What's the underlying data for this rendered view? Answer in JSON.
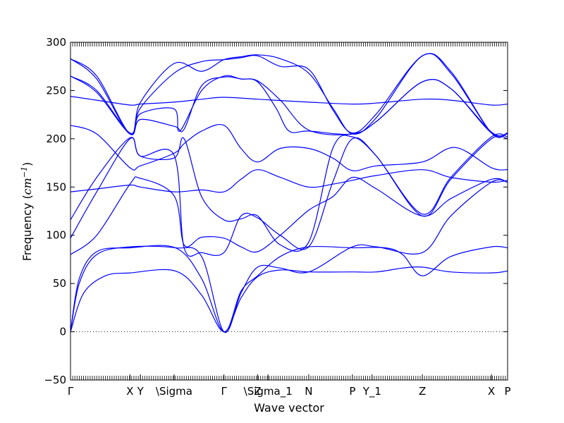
{
  "chart_data": {
    "type": "line",
    "xlabel": "Wave vector",
    "ylabel_text": "Frequency (",
    "ylabel_math": "cm",
    "ylabel_exp": "−1",
    "ylabel_close": ")",
    "ylim": [
      -50,
      300
    ],
    "yticks": [
      -50,
      0,
      50,
      100,
      150,
      200,
      250,
      300
    ],
    "grid": false,
    "line_color": "#0000ff",
    "zero_line_color": "#000000",
    "x_range": [
      0,
      1
    ],
    "x_tick_labels": [
      {
        "label": "Γ",
        "x": 0.0
      },
      {
        "label": "X",
        "x": 0.136
      },
      {
        "label": "Y",
        "x": 0.16
      },
      {
        "label": "\\Sigma",
        "x": 0.237
      },
      {
        "label": "Γ",
        "x": 0.351
      },
      {
        "label": "Z",
        "x": 0.428
      },
      {
        "label": "\\Sigma_1",
        "x": 0.452
      },
      {
        "label": "N",
        "x": 0.545
      },
      {
        "label": "P",
        "x": 0.645
      },
      {
        "label": "Y_1",
        "x": 0.69
      },
      {
        "label": "Z",
        "x": 0.805
      },
      {
        "label": "X",
        "x": 0.963
      },
      {
        "label": "P",
        "x": 1.0
      }
    ],
    "series": [
      {
        "values": [
          [
            0,
            0
          ],
          [
            0.03,
            40
          ],
          [
            0.08,
            58
          ],
          [
            0.136,
            61
          ],
          [
            0.24,
            63
          ],
          [
            0.3,
            38
          ],
          [
            0.351,
            0
          ],
          [
            0.39,
            35
          ],
          [
            0.428,
            57
          ],
          [
            0.48,
            64
          ],
          [
            0.545,
            62
          ],
          [
            0.645,
            62
          ],
          [
            0.7,
            62
          ],
          [
            0.76,
            66
          ],
          [
            0.805,
            67
          ],
          [
            0.87,
            62
          ],
          [
            0.963,
            61
          ],
          [
            1.0,
            63
          ]
        ]
      },
      {
        "values": [
          [
            0,
            0
          ],
          [
            0.02,
            55
          ],
          [
            0.06,
            83
          ],
          [
            0.136,
            87
          ],
          [
            0.24,
            87
          ],
          [
            0.3,
            55
          ],
          [
            0.351,
            0
          ],
          [
            0.39,
            42
          ],
          [
            0.428,
            58
          ],
          [
            0.48,
            78
          ],
          [
            0.545,
            88
          ],
          [
            0.645,
            87
          ],
          [
            0.72,
            87
          ],
          [
            0.76,
            80
          ],
          [
            0.805,
            58
          ],
          [
            0.87,
            78
          ],
          [
            0.963,
            88
          ],
          [
            1.0,
            87
          ]
        ]
      },
      {
        "values": [
          [
            0,
            0
          ],
          [
            0.02,
            50
          ],
          [
            0.06,
            80
          ],
          [
            0.136,
            88
          ],
          [
            0.24,
            87
          ],
          [
            0.3,
            78
          ],
          [
            0.351,
            0
          ],
          [
            0.39,
            40
          ],
          [
            0.428,
            67
          ],
          [
            0.48,
            66
          ],
          [
            0.545,
            62
          ],
          [
            0.645,
            88
          ],
          [
            0.7,
            88
          ],
          [
            0.805,
            82
          ],
          [
            0.87,
            120
          ],
          [
            0.963,
            155
          ],
          [
            1.0,
            155
          ]
        ]
      },
      {
        "values": [
          [
            0,
            80
          ],
          [
            0.06,
            100
          ],
          [
            0.136,
            153
          ],
          [
            0.16,
            159
          ],
          [
            0.237,
            141
          ],
          [
            0.26,
            90
          ],
          [
            0.3,
            98
          ],
          [
            0.351,
            97
          ],
          [
            0.39,
            88
          ],
          [
            0.428,
            83
          ],
          [
            0.48,
            100
          ],
          [
            0.545,
            126
          ],
          [
            0.6,
            140
          ],
          [
            0.645,
            160
          ],
          [
            0.7,
            148
          ],
          [
            0.805,
            120
          ],
          [
            0.87,
            138
          ],
          [
            0.963,
            158
          ],
          [
            1.0,
            155
          ]
        ]
      },
      {
        "values": [
          [
            0,
            97
          ],
          [
            0.06,
            145
          ],
          [
            0.136,
            200
          ],
          [
            0.16,
            182
          ],
          [
            0.237,
            183
          ],
          [
            0.26,
            87
          ],
          [
            0.3,
            82
          ],
          [
            0.351,
            82
          ],
          [
            0.39,
            120
          ],
          [
            0.428,
            118
          ],
          [
            0.48,
            100
          ],
          [
            0.545,
            88
          ],
          [
            0.6,
            155
          ],
          [
            0.645,
            200
          ],
          [
            0.7,
            182
          ],
          [
            0.805,
            120
          ],
          [
            0.87,
            158
          ],
          [
            0.963,
            200
          ],
          [
            1.0,
            200
          ]
        ]
      },
      {
        "values": [
          [
            0,
            116
          ],
          [
            0.06,
            160
          ],
          [
            0.136,
            201
          ],
          [
            0.16,
            182
          ],
          [
            0.237,
            180
          ],
          [
            0.26,
            200
          ],
          [
            0.3,
            140
          ],
          [
            0.351,
            116
          ],
          [
            0.39,
            117
          ],
          [
            0.428,
            120
          ],
          [
            0.48,
            90
          ],
          [
            0.545,
            93
          ],
          [
            0.6,
            190
          ],
          [
            0.645,
            202
          ],
          [
            0.7,
            182
          ],
          [
            0.805,
            122
          ],
          [
            0.87,
            160
          ],
          [
            0.963,
            202
          ],
          [
            1.0,
            202
          ]
        ]
      },
      {
        "values": [
          [
            0,
            145
          ],
          [
            0.06,
            148
          ],
          [
            0.136,
            152
          ],
          [
            0.16,
            150
          ],
          [
            0.237,
            145
          ],
          [
            0.3,
            147
          ],
          [
            0.351,
            145
          ],
          [
            0.39,
            158
          ],
          [
            0.428,
            168
          ],
          [
            0.48,
            160
          ],
          [
            0.545,
            150
          ],
          [
            0.6,
            153
          ],
          [
            0.645,
            157
          ],
          [
            0.7,
            162
          ],
          [
            0.805,
            168
          ],
          [
            0.87,
            160
          ],
          [
            0.963,
            155
          ],
          [
            1.0,
            157
          ]
        ]
      },
      {
        "values": [
          [
            0,
            214
          ],
          [
            0.06,
            205
          ],
          [
            0.136,
            170
          ],
          [
            0.16,
            172
          ],
          [
            0.237,
            185
          ],
          [
            0.26,
            195
          ],
          [
            0.3,
            208
          ],
          [
            0.351,
            214
          ],
          [
            0.39,
            190
          ],
          [
            0.428,
            176
          ],
          [
            0.48,
            190
          ],
          [
            0.545,
            190
          ],
          [
            0.6,
            180
          ],
          [
            0.645,
            167
          ],
          [
            0.7,
            172
          ],
          [
            0.805,
            176
          ],
          [
            0.88,
            191
          ],
          [
            0.963,
            170
          ],
          [
            1.0,
            168
          ]
        ]
      },
      {
        "values": [
          [
            0,
            244
          ],
          [
            0.06,
            240
          ],
          [
            0.136,
            235
          ],
          [
            0.16,
            236
          ],
          [
            0.237,
            238
          ],
          [
            0.3,
            241
          ],
          [
            0.351,
            243
          ],
          [
            0.428,
            241
          ],
          [
            0.545,
            238
          ],
          [
            0.645,
            236
          ],
          [
            0.7,
            237
          ],
          [
            0.805,
            241
          ],
          [
            0.87,
            240
          ],
          [
            0.963,
            235
          ],
          [
            1.0,
            236
          ]
        ]
      },
      {
        "values": [
          [
            0,
            265
          ],
          [
            0.06,
            250
          ],
          [
            0.136,
            206
          ],
          [
            0.16,
            226
          ],
          [
            0.237,
            231
          ],
          [
            0.25,
            208
          ],
          [
            0.3,
            250
          ],
          [
            0.351,
            265
          ],
          [
            0.39,
            262
          ],
          [
            0.428,
            260
          ],
          [
            0.48,
            240
          ],
          [
            0.545,
            209
          ],
          [
            0.645,
            205
          ],
          [
            0.7,
            218
          ],
          [
            0.805,
            259
          ],
          [
            0.87,
            252
          ],
          [
            0.963,
            206
          ],
          [
            1.0,
            206
          ]
        ]
      },
      {
        "values": [
          [
            0,
            265
          ],
          [
            0.06,
            248
          ],
          [
            0.136,
            205
          ],
          [
            0.16,
            220
          ],
          [
            0.237,
            213
          ],
          [
            0.26,
            210
          ],
          [
            0.3,
            255
          ],
          [
            0.351,
            264
          ],
          [
            0.39,
            262
          ],
          [
            0.428,
            259
          ],
          [
            0.47,
            232
          ],
          [
            0.5,
            208
          ],
          [
            0.545,
            208
          ],
          [
            0.645,
            205
          ],
          [
            0.7,
            218
          ],
          [
            0.805,
            259
          ],
          [
            0.87,
            252
          ],
          [
            0.963,
            207
          ],
          [
            1.0,
            205
          ]
        ]
      },
      {
        "values": [
          [
            0,
            283
          ],
          [
            0.06,
            265
          ],
          [
            0.136,
            205
          ],
          [
            0.16,
            232
          ],
          [
            0.237,
            268
          ],
          [
            0.3,
            280
          ],
          [
            0.351,
            282
          ],
          [
            0.39,
            284
          ],
          [
            0.428,
            286
          ],
          [
            0.48,
            275
          ],
          [
            0.545,
            272
          ],
          [
            0.6,
            230
          ],
          [
            0.645,
            206
          ],
          [
            0.7,
            226
          ],
          [
            0.805,
            286
          ],
          [
            0.87,
            270
          ],
          [
            0.963,
            206
          ],
          [
            1.0,
            206
          ]
        ]
      },
      {
        "values": [
          [
            0,
            283
          ],
          [
            0.06,
            262
          ],
          [
            0.136,
            205
          ],
          [
            0.16,
            238
          ],
          [
            0.237,
            278
          ],
          [
            0.3,
            270
          ],
          [
            0.351,
            282
          ],
          [
            0.39,
            285
          ],
          [
            0.428,
            287
          ],
          [
            0.48,
            283
          ],
          [
            0.545,
            268
          ],
          [
            0.6,
            232
          ],
          [
            0.645,
            205
          ],
          [
            0.7,
            222
          ],
          [
            0.805,
            286
          ],
          [
            0.87,
            268
          ],
          [
            0.963,
            206
          ],
          [
            1.0,
            206
          ]
        ]
      }
    ]
  }
}
